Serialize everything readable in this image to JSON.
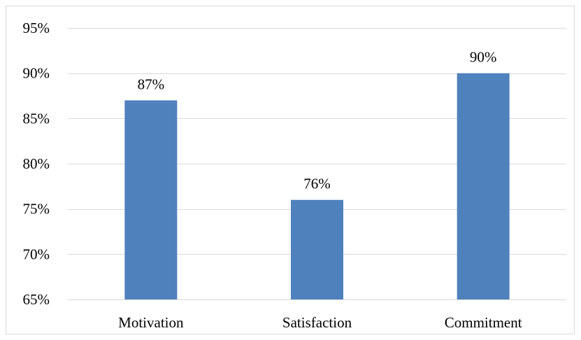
{
  "chart_data": {
    "type": "bar",
    "categories": [
      "Motivation",
      "Satisfaction",
      "Commitment"
    ],
    "values": [
      87,
      76,
      90
    ],
    "value_labels": [
      "87%",
      "76%",
      "90%"
    ],
    "ylim": [
      65,
      95
    ],
    "yticks": [
      65,
      70,
      75,
      80,
      85,
      90,
      95
    ],
    "ytick_labels": [
      "65%",
      "70%",
      "75%",
      "80%",
      "85%",
      "90%",
      "95%"
    ],
    "title": "",
    "xlabel": "",
    "ylabel": "",
    "grid": true,
    "legend": "none",
    "bar_color": "#4F81BD",
    "grid_color": "#D9D9D9"
  }
}
